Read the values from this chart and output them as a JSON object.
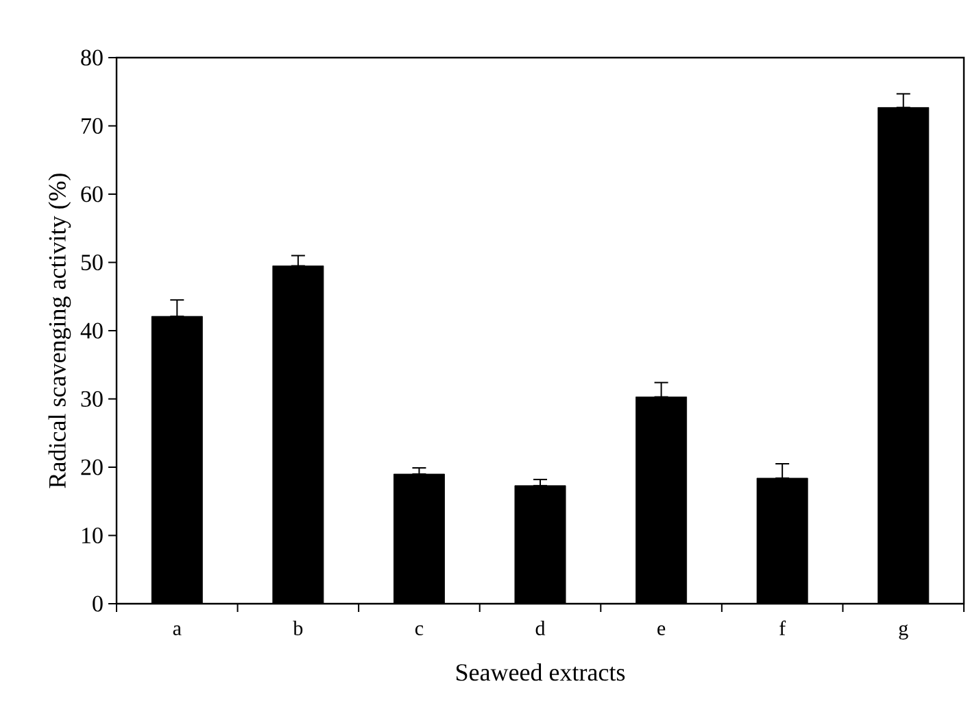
{
  "chart_data": {
    "type": "bar",
    "xlabel": "Seaweed extracts",
    "ylabel": "Radical scavenging activity (%)",
    "categories": [
      "a",
      "b",
      "c",
      "d",
      "e",
      "f",
      "g"
    ],
    "values": [
      42.1,
      49.5,
      19.0,
      17.3,
      30.3,
      18.4,
      72.7
    ],
    "errors": [
      [
        42.1,
        44.5
      ],
      [
        49.5,
        51.0
      ],
      [
        19.0,
        19.9
      ],
      [
        17.3,
        18.2
      ],
      [
        30.3,
        32.4
      ],
      [
        18.4,
        20.5
      ],
      [
        72.7,
        74.7
      ]
    ],
    "color": "#000000",
    "ylim": [
      0,
      80
    ],
    "yticks": [
      0,
      10,
      20,
      30,
      40,
      50,
      60,
      70,
      80
    ],
    "grid": false
  }
}
